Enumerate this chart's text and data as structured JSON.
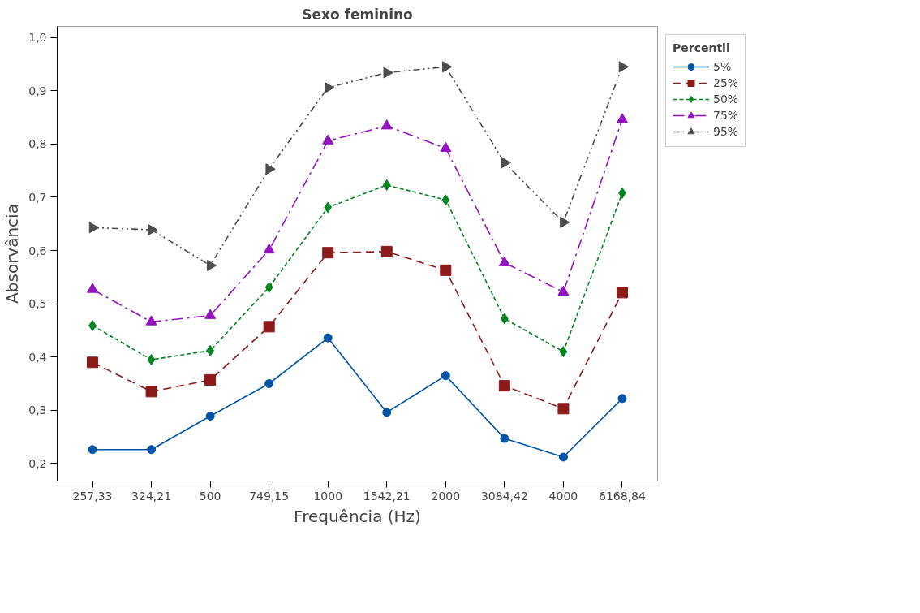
{
  "chart_data": {
    "type": "line",
    "title": "Sexo feminino",
    "xlabel": "Frequência (Hz)",
    "ylabel": "Absorvância",
    "legend_title": "Percentil",
    "categories": [
      "257,33",
      "324,21",
      "500",
      "749,15",
      "1000",
      "1542,21",
      "2000",
      "3084,42",
      "4000",
      "6168,84"
    ],
    "series": [
      {
        "name": "5%",
        "color": "#0054a6",
        "marker": "circle",
        "line_style": "solid",
        "values": [
          0.226,
          0.226,
          0.289,
          0.35,
          0.436,
          0.296,
          0.365,
          0.247,
          0.212,
          0.322
        ]
      },
      {
        "name": "25%",
        "color": "#8b1a1a",
        "marker": "square",
        "line_style": "dashed",
        "values": [
          0.39,
          0.335,
          0.357,
          0.457,
          0.596,
          0.598,
          0.563,
          0.346,
          0.303,
          0.521
        ]
      },
      {
        "name": "50%",
        "color": "#00841f",
        "marker": "diamond",
        "line_style": "dotted",
        "values": [
          0.459,
          0.395,
          0.412,
          0.531,
          0.681,
          0.723,
          0.695,
          0.472,
          0.41,
          0.708
        ]
      },
      {
        "name": "75%",
        "color": "#9413c0",
        "marker": "triangle",
        "line_style": "dashdot",
        "values": [
          0.527,
          0.466,
          0.478,
          0.601,
          0.806,
          0.834,
          0.792,
          0.577,
          0.522,
          0.846
        ]
      },
      {
        "name": "95%",
        "color": "#4d4d4d",
        "marker": "triangle_right",
        "line_style": "dashdotdot",
        "values": [
          0.643,
          0.639,
          0.572,
          0.753,
          0.906,
          0.934,
          0.945,
          0.765,
          0.653,
          0.945
        ]
      }
    ],
    "ylim": [
      0.167,
      1.021
    ],
    "yticks": [
      {
        "value": 0.2,
        "label": "0,2"
      },
      {
        "value": 0.3,
        "label": "0,3"
      },
      {
        "value": 0.4,
        "label": "0,4"
      },
      {
        "value": 0.5,
        "label": "0,5"
      },
      {
        "value": 0.6,
        "label": "0,6"
      },
      {
        "value": 0.7,
        "label": "0,7"
      },
      {
        "value": 0.8,
        "label": "0,8"
      },
      {
        "value": 0.9,
        "label": "0,9"
      },
      {
        "value": 1.0,
        "label": "1,0"
      }
    ],
    "grid": false,
    "legend": "top right"
  }
}
